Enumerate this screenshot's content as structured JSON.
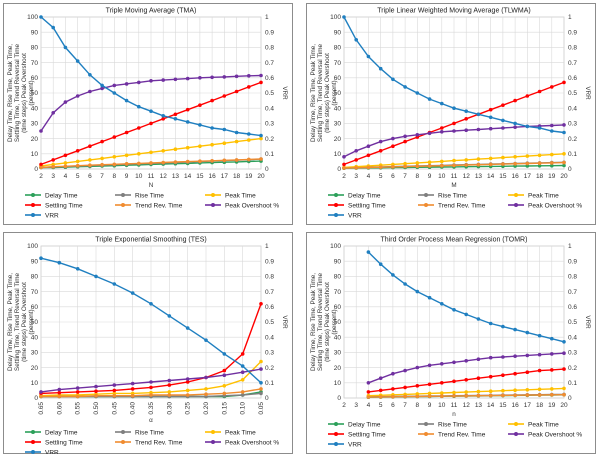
{
  "figure": {
    "colors": {
      "Delay Time": "#2ca05a",
      "Rise Time": "#7f7f7f",
      "Peak Time": "#ffc000",
      "Settling Time": "#ff0000",
      "Trend Rev. Time": "#f08c30",
      "Peak Overshoot %": "#7030a0",
      "VRR": "#1f7fc0"
    },
    "legend_order": [
      "Delay Time",
      "Rise Time",
      "Peak Time",
      "Settling Time",
      "Trend Rev. Time",
      "Peak Overshoot %",
      "VRR"
    ],
    "legend_cols": 3,
    "legend_labels": [
      "Delay Time",
      "Rise Time",
      "Peak Time",
      "Settling Time",
      "Trend Rev. Time",
      "Peak Overshoot %",
      "VRR"
    ]
  },
  "chart_data": [
    {
      "type": "line",
      "title": "Triple Moving Average (TMA)",
      "xlabel": "N",
      "ylabel": "Delay Time, Rise Time, Peak Time, Settling Time, Trend Reversal Time (time steps) Peak Overshoot (percent)",
      "y2label": "VRR",
      "x": [
        "2",
        "3",
        "4",
        "5",
        "6",
        "7",
        "8",
        "9",
        "10",
        "11",
        "12",
        "13",
        "14",
        "15",
        "16",
        "17",
        "18",
        "19",
        "20"
      ],
      "ylim": [
        0,
        100
      ],
      "yticks": [
        0,
        10,
        20,
        30,
        40,
        50,
        60,
        70,
        80,
        90,
        100
      ],
      "y2lim": [
        0,
        1
      ],
      "y2ticks": [
        "0",
        "0.1",
        "0.2",
        "0.3",
        "0.4",
        "0.5",
        "0.6",
        "0.7",
        "0.8",
        "0.9",
        "1"
      ],
      "legend": "bottom",
      "grid": true,
      "series": [
        {
          "name": "Delay Time",
          "axis": "left",
          "values": [
            1,
            1,
            1.2,
            1.5,
            1.7,
            2,
            2.2,
            2.5,
            2.7,
            3,
            3.2,
            3.5,
            3.7,
            4,
            4.2,
            4.5,
            4.7,
            5,
            5.2
          ]
        },
        {
          "name": "Rise Time",
          "axis": "left",
          "values": [
            1,
            1.3,
            1.6,
            1.9,
            2.2,
            2.5,
            2.8,
            3.1,
            3.4,
            3.7,
            4,
            4.3,
            4.6,
            4.9,
            5.2,
            5.5,
            5.8,
            6.1,
            6.5
          ]
        },
        {
          "name": "Peak Time",
          "axis": "left",
          "values": [
            2,
            3,
            4,
            5,
            6,
            7,
            8,
            9,
            10,
            11,
            12,
            13,
            14,
            15,
            16,
            17,
            18,
            19,
            20
          ]
        },
        {
          "name": "Settling Time",
          "axis": "left",
          "values": [
            3,
            6,
            9,
            12,
            15,
            18,
            21,
            24,
            27,
            30,
            33,
            36,
            39,
            42,
            45,
            48,
            51,
            54,
            57
          ]
        },
        {
          "name": "Trend Rev. Time",
          "axis": "left",
          "values": [
            1,
            1.5,
            1.8,
            2.2,
            2.5,
            2.8,
            3.1,
            3.4,
            3.7,
            4,
            4.3,
            4.6,
            4.9,
            5.1,
            5.4,
            5.7,
            6,
            6.3,
            6.6
          ]
        },
        {
          "name": "Peak Overshoot %",
          "axis": "left",
          "values": [
            25,
            37,
            44,
            48,
            51,
            53,
            55,
            56,
            57,
            58,
            58.5,
            59,
            59.5,
            60,
            60.3,
            60.6,
            61,
            61.3,
            61.5
          ]
        },
        {
          "name": "VRR",
          "axis": "right",
          "values": [
            1.0,
            0.93,
            0.8,
            0.71,
            0.62,
            0.55,
            0.5,
            0.45,
            0.41,
            0.38,
            0.35,
            0.33,
            0.31,
            0.29,
            0.27,
            0.26,
            0.24,
            0.23,
            0.22
          ]
        }
      ]
    },
    {
      "type": "line",
      "title": "Triple Linear Weighted Moving Average (TLWMA)",
      "xlabel": "M",
      "ylabel": "Delay Time, Rise Time, Peak Time, Settling Time, Trend Reversal Time (time steps) Peak Overshoot (percent)",
      "y2label": "VRR",
      "x": [
        "2",
        "3",
        "4",
        "5",
        "6",
        "7",
        "8",
        "9",
        "10",
        "11",
        "12",
        "13",
        "14",
        "15",
        "16",
        "17",
        "18",
        "19",
        "20"
      ],
      "ylim": [
        0,
        100
      ],
      "yticks": [
        0,
        10,
        20,
        30,
        40,
        50,
        60,
        70,
        80,
        90,
        100
      ],
      "y2lim": [
        0,
        1
      ],
      "y2ticks": [
        "0",
        "0.1",
        "0.2",
        "0.3",
        "0.4",
        "0.5",
        "0.6",
        "0.7",
        "0.8",
        "0.9",
        "1"
      ],
      "legend": "bottom",
      "grid": true,
      "series": [
        {
          "name": "Delay Time",
          "axis": "left",
          "values": [
            0.5,
            0.6,
            0.7,
            0.8,
            0.9,
            1,
            1.1,
            1.2,
            1.3,
            1.4,
            1.5,
            1.6,
            1.7,
            1.8,
            1.9,
            2,
            2.1,
            2.2,
            2.3
          ]
        },
        {
          "name": "Rise Time",
          "axis": "left",
          "values": [
            0.8,
            1,
            1.2,
            1.4,
            1.6,
            1.8,
            2,
            2.2,
            2.4,
            2.6,
            2.8,
            3,
            3.2,
            3.4,
            3.6,
            3.8,
            4,
            4.2,
            4.4
          ]
        },
        {
          "name": "Peak Time",
          "axis": "left",
          "values": [
            1,
            1.5,
            2,
            2.5,
            3,
            3.5,
            4,
            4.5,
            5,
            5.5,
            6,
            6.5,
            7,
            7.5,
            8,
            8.5,
            9,
            9.5,
            10
          ]
        },
        {
          "name": "Settling Time",
          "axis": "left",
          "values": [
            3,
            6,
            9,
            12,
            15,
            18,
            21,
            24,
            27,
            30,
            33,
            36,
            39,
            42,
            45,
            48,
            51,
            54,
            57
          ]
        },
        {
          "name": "Trend Rev. Time",
          "axis": "left",
          "values": [
            0.6,
            0.8,
            1,
            1.2,
            1.4,
            1.6,
            1.8,
            2,
            2.2,
            2.4,
            2.6,
            2.8,
            3,
            3.2,
            3.4,
            3.6,
            3.8,
            4,
            4.2
          ]
        },
        {
          "name": "Peak Overshoot %",
          "axis": "left",
          "values": [
            8,
            12,
            15,
            18,
            20,
            21.5,
            22.5,
            23.5,
            24.5,
            25,
            25.5,
            26,
            26.5,
            27,
            27.5,
            28,
            28.3,
            28.6,
            29
          ]
        },
        {
          "name": "VRR",
          "axis": "right",
          "values": [
            1.0,
            0.85,
            0.74,
            0.66,
            0.59,
            0.54,
            0.5,
            0.46,
            0.43,
            0.4,
            0.38,
            0.36,
            0.34,
            0.32,
            0.3,
            0.28,
            0.27,
            0.25,
            0.24
          ]
        }
      ]
    },
    {
      "type": "line",
      "title": "Triple Exponential Smoothing (TES)",
      "xlabel": "α",
      "ylabel": "Delay Time, Rise Time, Peak Time, Settling Time, Trend Reversal Time (time steps) Peak Overshoot (percent)",
      "y2label": "VRR",
      "x": [
        "0.65",
        "0.60",
        "0.55",
        "0.50",
        "0.45",
        "0.40",
        "0.35",
        "0.30",
        "0.25",
        "0.20",
        "0.15",
        "0.10",
        "0.05"
      ],
      "xtick_rotate": true,
      "ylim": [
        0,
        100
      ],
      "yticks": [
        0,
        10,
        20,
        30,
        40,
        50,
        60,
        70,
        80,
        90,
        100
      ],
      "y2lim": [
        0,
        1
      ],
      "y2ticks": [
        "0",
        "0.1",
        "0.2",
        "0.3",
        "0.4",
        "0.5",
        "0.6",
        "0.7",
        "0.8",
        "0.9",
        "1"
      ],
      "legend": "bottom",
      "grid": true,
      "series": [
        {
          "name": "Delay Time",
          "axis": "left",
          "values": [
            1,
            1,
            1,
            1,
            1,
            1,
            1,
            1,
            1,
            1,
            1,
            2,
            4
          ]
        },
        {
          "name": "Rise Time",
          "axis": "left",
          "values": [
            1,
            1,
            1,
            1,
            1,
            1,
            1,
            1,
            1,
            1,
            1.5,
            2,
            3
          ]
        },
        {
          "name": "Peak Time",
          "axis": "left",
          "values": [
            1.5,
            2,
            2,
            2.5,
            3,
            3,
            3.5,
            4,
            5,
            6,
            8,
            12,
            24
          ]
        },
        {
          "name": "Settling Time",
          "axis": "left",
          "values": [
            3,
            3.5,
            4,
            4.5,
            5,
            6,
            7,
            8.5,
            10.5,
            13.5,
            18,
            29,
            62
          ]
        },
        {
          "name": "Trend Rev. Time",
          "axis": "left",
          "values": [
            1,
            1,
            1,
            1.5,
            1.5,
            1.5,
            2,
            2,
            2,
            2.5,
            3,
            4,
            6
          ]
        },
        {
          "name": "Peak Overshoot %",
          "axis": "left",
          "values": [
            4,
            5.5,
            6.5,
            7.5,
            8.5,
            9.5,
            10.5,
            11.5,
            12.5,
            13.5,
            15,
            17,
            19
          ]
        },
        {
          "name": "VRR",
          "axis": "right",
          "values": [
            0.92,
            0.89,
            0.85,
            0.8,
            0.75,
            0.69,
            0.62,
            0.54,
            0.46,
            0.38,
            0.29,
            0.21,
            0.1
          ]
        }
      ]
    },
    {
      "type": "line",
      "title": "Third Order Process Mean Regression (TOMR)",
      "xlabel": "n",
      "ylabel": "Delay Time, Rise Time, Peak Time, Settling Time, Trend Reversal Time (time steps) Peak Overshoot (percent)",
      "y2label": "VRR",
      "x": [
        "2",
        "3",
        "4",
        "5",
        "6",
        "7",
        "8",
        "9",
        "10",
        "11",
        "12",
        "13",
        "14",
        "15",
        "16",
        "17",
        "18",
        "19",
        "20"
      ],
      "ylim": [
        0,
        100
      ],
      "yticks": [
        0,
        10,
        20,
        30,
        40,
        50,
        60,
        70,
        80,
        90,
        100
      ],
      "y2lim": [
        0,
        1
      ],
      "y2ticks": [
        "0",
        "0.1",
        "0.2",
        "0.3",
        "0.4",
        "0.5",
        "0.6",
        "0.7",
        "0.8",
        "0.9",
        "1"
      ],
      "legend": "bottom",
      "grid": true,
      "series": [
        {
          "name": "Delay Time",
          "axis": "left",
          "values": [
            null,
            null,
            0.5,
            0.6,
            0.7,
            0.8,
            0.9,
            1,
            1.1,
            1.2,
            1.3,
            1.4,
            1.5,
            1.6,
            1.7,
            1.8,
            1.9,
            2,
            2.1
          ]
        },
        {
          "name": "Rise Time",
          "axis": "left",
          "values": [
            null,
            null,
            0.8,
            0.9,
            1,
            1.1,
            1.2,
            1.3,
            1.4,
            1.5,
            1.6,
            1.7,
            1.8,
            1.9,
            2,
            2.1,
            2.2,
            2.3,
            2.4
          ]
        },
        {
          "name": "Peak Time",
          "axis": "left",
          "values": [
            null,
            null,
            1.5,
            1.8,
            2.1,
            2.4,
            2.7,
            3,
            3.3,
            3.6,
            3.9,
            4.2,
            4.5,
            4.8,
            5.1,
            5.4,
            5.7,
            6,
            6.3
          ]
        },
        {
          "name": "Settling Time",
          "axis": "left",
          "values": [
            null,
            null,
            4,
            5,
            6,
            7,
            8,
            9,
            10,
            11,
            12,
            13,
            14,
            15,
            16,
            17,
            18,
            18.5,
            19
          ]
        },
        {
          "name": "Trend Rev. Time",
          "axis": "left",
          "values": [
            null,
            null,
            0.6,
            0.7,
            0.8,
            0.9,
            1,
            1.1,
            1.2,
            1.3,
            1.4,
            1.5,
            1.6,
            1.7,
            1.8,
            1.9,
            2,
            2.1,
            2.2
          ]
        },
        {
          "name": "Peak Overshoot %",
          "axis": "left",
          "values": [
            null,
            null,
            10,
            13,
            16,
            18,
            20,
            21.5,
            22.5,
            23.5,
            24.5,
            25.5,
            26.5,
            27,
            27.5,
            28,
            28.5,
            29,
            29.5
          ]
        },
        {
          "name": "VRR",
          "axis": "right",
          "values": [
            null,
            null,
            0.96,
            0.88,
            0.81,
            0.75,
            0.7,
            0.66,
            0.62,
            0.58,
            0.55,
            0.52,
            0.49,
            0.47,
            0.45,
            0.43,
            0.41,
            0.39,
            0.37
          ]
        }
      ]
    }
  ]
}
